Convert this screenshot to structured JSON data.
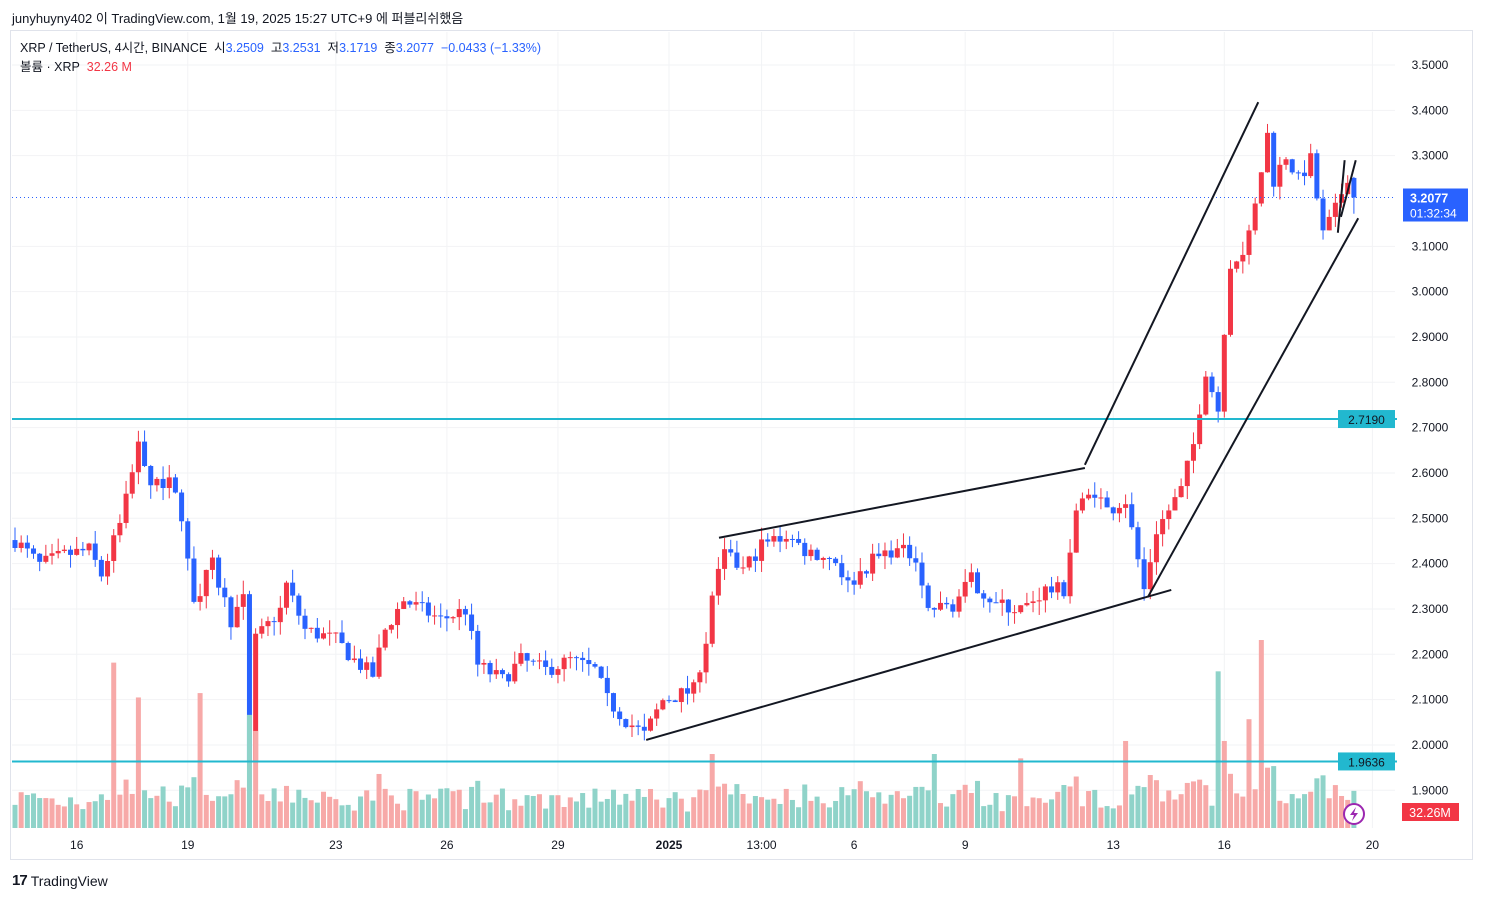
{
  "byline": "junyhuyny402 이 TradingView.com, 1월 19, 2025 15:27 UTC+9 에 퍼블리쉬했음",
  "legend": {
    "symbol": "XRP / TetherUS, 4시간, BINANCE",
    "o_label": "시",
    "o": "3.2509",
    "h_label": "고",
    "h": "3.2531",
    "l_label": "저",
    "l": "3.1719",
    "c_label": "종",
    "c": "3.2077",
    "change": "−0.0433 (−1.33%)",
    "volume_label": "볼륨 · XRP",
    "volume": "32.26 M"
  },
  "brand": "TradingView",
  "colors": {
    "up": "#f23645",
    "down": "#2962ff",
    "level": "#22b8cf",
    "vol_up": "#f7a9a8",
    "vol_down": "#8fd3c9"
  },
  "chart_data": {
    "type": "candlestick",
    "title": "XRP / TetherUS, 4h, BINANCE",
    "candle_count": 218,
    "close_keypoints": [
      [
        0,
        2.452
      ],
      [
        4,
        2.397
      ],
      [
        8,
        2.419
      ],
      [
        12,
        2.43
      ],
      [
        14,
        2.375
      ],
      [
        17,
        2.485
      ],
      [
        20,
        2.673
      ],
      [
        22,
        2.585
      ],
      [
        26,
        2.574
      ],
      [
        29,
        2.32
      ],
      [
        32,
        2.397
      ],
      [
        35,
        2.276
      ],
      [
        37,
        2.32
      ],
      [
        38,
        1.967
      ],
      [
        39,
        2.232
      ],
      [
        43,
        2.298
      ],
      [
        44,
        2.353
      ],
      [
        47,
        2.254
      ],
      [
        52,
        2.232
      ],
      [
        55,
        2.187
      ],
      [
        58,
        2.154
      ],
      [
        60,
        2.254
      ],
      [
        63,
        2.32
      ],
      [
        69,
        2.276
      ],
      [
        73,
        2.298
      ],
      [
        75,
        2.176
      ],
      [
        79,
        2.143
      ],
      [
        82,
        2.187
      ],
      [
        86,
        2.165
      ],
      [
        90,
        2.187
      ],
      [
        94,
        2.165
      ],
      [
        96,
        2.099
      ],
      [
        99,
        2.055
      ],
      [
        102,
        2.022
      ],
      [
        105,
        2.099
      ],
      [
        110,
        2.121
      ],
      [
        112,
        2.232
      ],
      [
        113,
        2.331
      ],
      [
        115,
        2.419
      ],
      [
        118,
        2.386
      ],
      [
        121,
        2.441
      ],
      [
        125,
        2.463
      ],
      [
        128,
        2.43
      ],
      [
        133,
        2.408
      ],
      [
        135,
        2.353
      ],
      [
        139,
        2.408
      ],
      [
        142,
        2.43
      ],
      [
        146,
        2.419
      ],
      [
        148,
        2.298
      ],
      [
        152,
        2.309
      ],
      [
        155,
        2.364
      ],
      [
        159,
        2.309
      ],
      [
        163,
        2.298
      ],
      [
        167,
        2.342
      ],
      [
        170,
        2.342
      ],
      [
        172,
        2.518
      ],
      [
        175,
        2.562
      ],
      [
        177,
        2.518
      ],
      [
        180,
        2.54
      ],
      [
        183,
        2.342
      ],
      [
        185,
        2.474
      ],
      [
        189,
        2.562
      ],
      [
        191,
        2.662
      ],
      [
        193,
        2.827
      ],
      [
        195,
        2.739
      ],
      [
        197,
        3.048
      ],
      [
        199,
        3.092
      ],
      [
        201,
        3.202
      ],
      [
        203,
        3.346
      ],
      [
        204,
        3.246
      ],
      [
        206,
        3.301
      ],
      [
        208,
        3.246
      ],
      [
        210,
        3.29
      ],
      [
        212,
        3.125
      ],
      [
        214,
        3.18
      ],
      [
        216,
        3.257
      ],
      [
        217,
        3.208
      ]
    ],
    "last_candle": {
      "open": 3.2509,
      "high": 3.2531,
      "low": 3.1719,
      "close": 3.2077
    },
    "volume_spikes_M": [
      [
        16,
        190
      ],
      [
        20,
        150
      ],
      [
        30,
        155
      ],
      [
        38,
        130
      ],
      [
        113,
        85
      ],
      [
        149,
        85
      ],
      [
        163,
        80
      ],
      [
        180,
        100
      ],
      [
        195,
        180
      ],
      [
        196,
        100
      ],
      [
        200,
        125
      ],
      [
        202,
        216
      ],
      [
        216,
        32.26
      ]
    ],
    "ylim": [
      1.84,
      3.54
    ],
    "y_ticks": [
      "3.5000",
      "3.4000",
      "3.3000",
      "3.1000",
      "3.0000",
      "2.9000",
      "2.8000",
      "2.7000",
      "2.6000",
      "2.5000",
      "2.4000",
      "2.3000",
      "2.2000",
      "2.1000",
      "2.0000",
      "1.9000"
    ],
    "x_ticks": [
      {
        "i": 10,
        "label": "16"
      },
      {
        "i": 28,
        "label": "19"
      },
      {
        "i": 52,
        "label": "23"
      },
      {
        "i": 70,
        "label": "26"
      },
      {
        "i": 88,
        "label": "29"
      },
      {
        "i": 106,
        "label": "2025"
      },
      {
        "i": 121,
        "label": "13:00"
      },
      {
        "i": 136,
        "label": "6"
      },
      {
        "i": 154,
        "label": "9"
      },
      {
        "i": 178,
        "label": "13"
      },
      {
        "i": 196,
        "label": "16"
      },
      {
        "i": 220,
        "label": "20"
      }
    ],
    "horizontal_levels": [
      {
        "price": 2.719,
        "label": "2.7190"
      },
      {
        "price": 1.9636,
        "label": "1.9636"
      }
    ],
    "current_price": {
      "label": "3.2077",
      "countdown": "01:32:34"
    },
    "volume_label": "32.26M",
    "trendlines": [
      [
        [
          102.3,
          2.011
        ],
        [
          187.4,
          2.342
        ]
      ],
      [
        [
          114.1,
          2.457
        ],
        [
          173.4,
          2.611
        ]
      ],
      [
        [
          173.4,
          2.618
        ],
        [
          201.5,
          3.418
        ]
      ],
      [
        [
          183.6,
          2.326
        ],
        [
          217.7,
          3.162
        ]
      ],
      [
        [
          214.4,
          3.13
        ],
        [
          215.5,
          3.29
        ]
      ],
      [
        [
          214.9,
          3.165
        ],
        [
          217.3,
          3.29
        ]
      ]
    ]
  }
}
